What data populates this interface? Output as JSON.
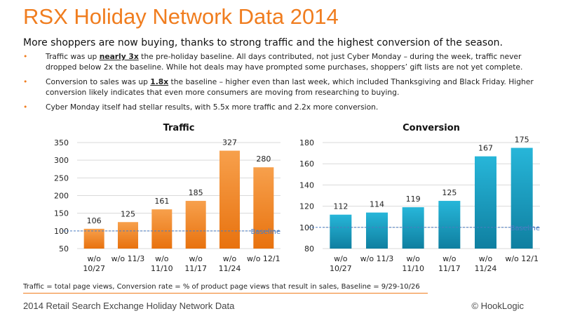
{
  "title": "RSX Holiday Network Data 2014",
  "subtitle": "More shoppers are now buying, thanks to strong traffic and the highest conversion of the season.",
  "bullet_marker": "•",
  "bullets": [
    {
      "pre": "Traffic was up ",
      "em": "nearly 3x",
      "post": " the pre-holiday baseline.  All days contributed, not just Cyber Monday – during the week, traffic never dropped below 2x the baseline.  While hot deals may have prompted some purchases, shoppers’ gift lists are not yet complete."
    },
    {
      "pre": "Conversion to sales was up ",
      "em": "1.8x",
      "post": " the baseline – higher even than last week, which included Thanksgiving and Black Friday.  Higher conversion likely indicates that even more consumers are moving from researching to buying."
    },
    {
      "pre": "Cyber Monday itself had stellar results, with 5.5x more traffic and 2.2x more conversion.",
      "em": "",
      "post": ""
    }
  ],
  "chart_data": [
    {
      "type": "bar",
      "title": "Traffic",
      "categories": [
        [
          "w/o",
          "10/27"
        ],
        [
          "w/o 11/3"
        ],
        [
          "w/o",
          "11/10"
        ],
        [
          "w/o",
          "11/17"
        ],
        [
          "w/o",
          "11/24"
        ],
        [
          "w/o 12/1"
        ]
      ],
      "values": [
        106,
        125,
        161,
        185,
        327,
        280
      ],
      "ylim": [
        50,
        350
      ],
      "yticks": [
        50,
        100,
        150,
        200,
        250,
        300,
        350
      ],
      "baseline": {
        "value": 100,
        "label": "Baseline"
      },
      "colors": {
        "top": "#f7a04c",
        "bottom": "#e8720e",
        "baseline": "#4a7cc2"
      },
      "grid": true
    },
    {
      "type": "bar",
      "title": "Conversion",
      "categories": [
        [
          "w/o",
          "10/27"
        ],
        [
          "w/o 11/3"
        ],
        [
          "w/o",
          "11/10"
        ],
        [
          "w/o",
          "11/17"
        ],
        [
          "w/o",
          "11/24"
        ],
        [
          "w/o 12/1"
        ]
      ],
      "values": [
        112,
        114,
        119,
        125,
        167,
        175
      ],
      "ylim": [
        80,
        180
      ],
      "yticks": [
        80,
        100,
        120,
        140,
        160,
        180
      ],
      "baseline": {
        "value": 100,
        "label": "Baseline"
      },
      "colors": {
        "top": "#27b6d9",
        "bottom": "#0f7fa0",
        "baseline": "#4a7cc2"
      },
      "grid": true
    }
  ],
  "footnote": "Traffic = total page views, Conversion rate = % of product page views that result in sales, Baseline = 9/29-10/26",
  "footer": {
    "left": "2014 Retail Search Exchange Holiday Network Data",
    "right": "© HookLogic"
  },
  "accent_color": "#f07d1f"
}
